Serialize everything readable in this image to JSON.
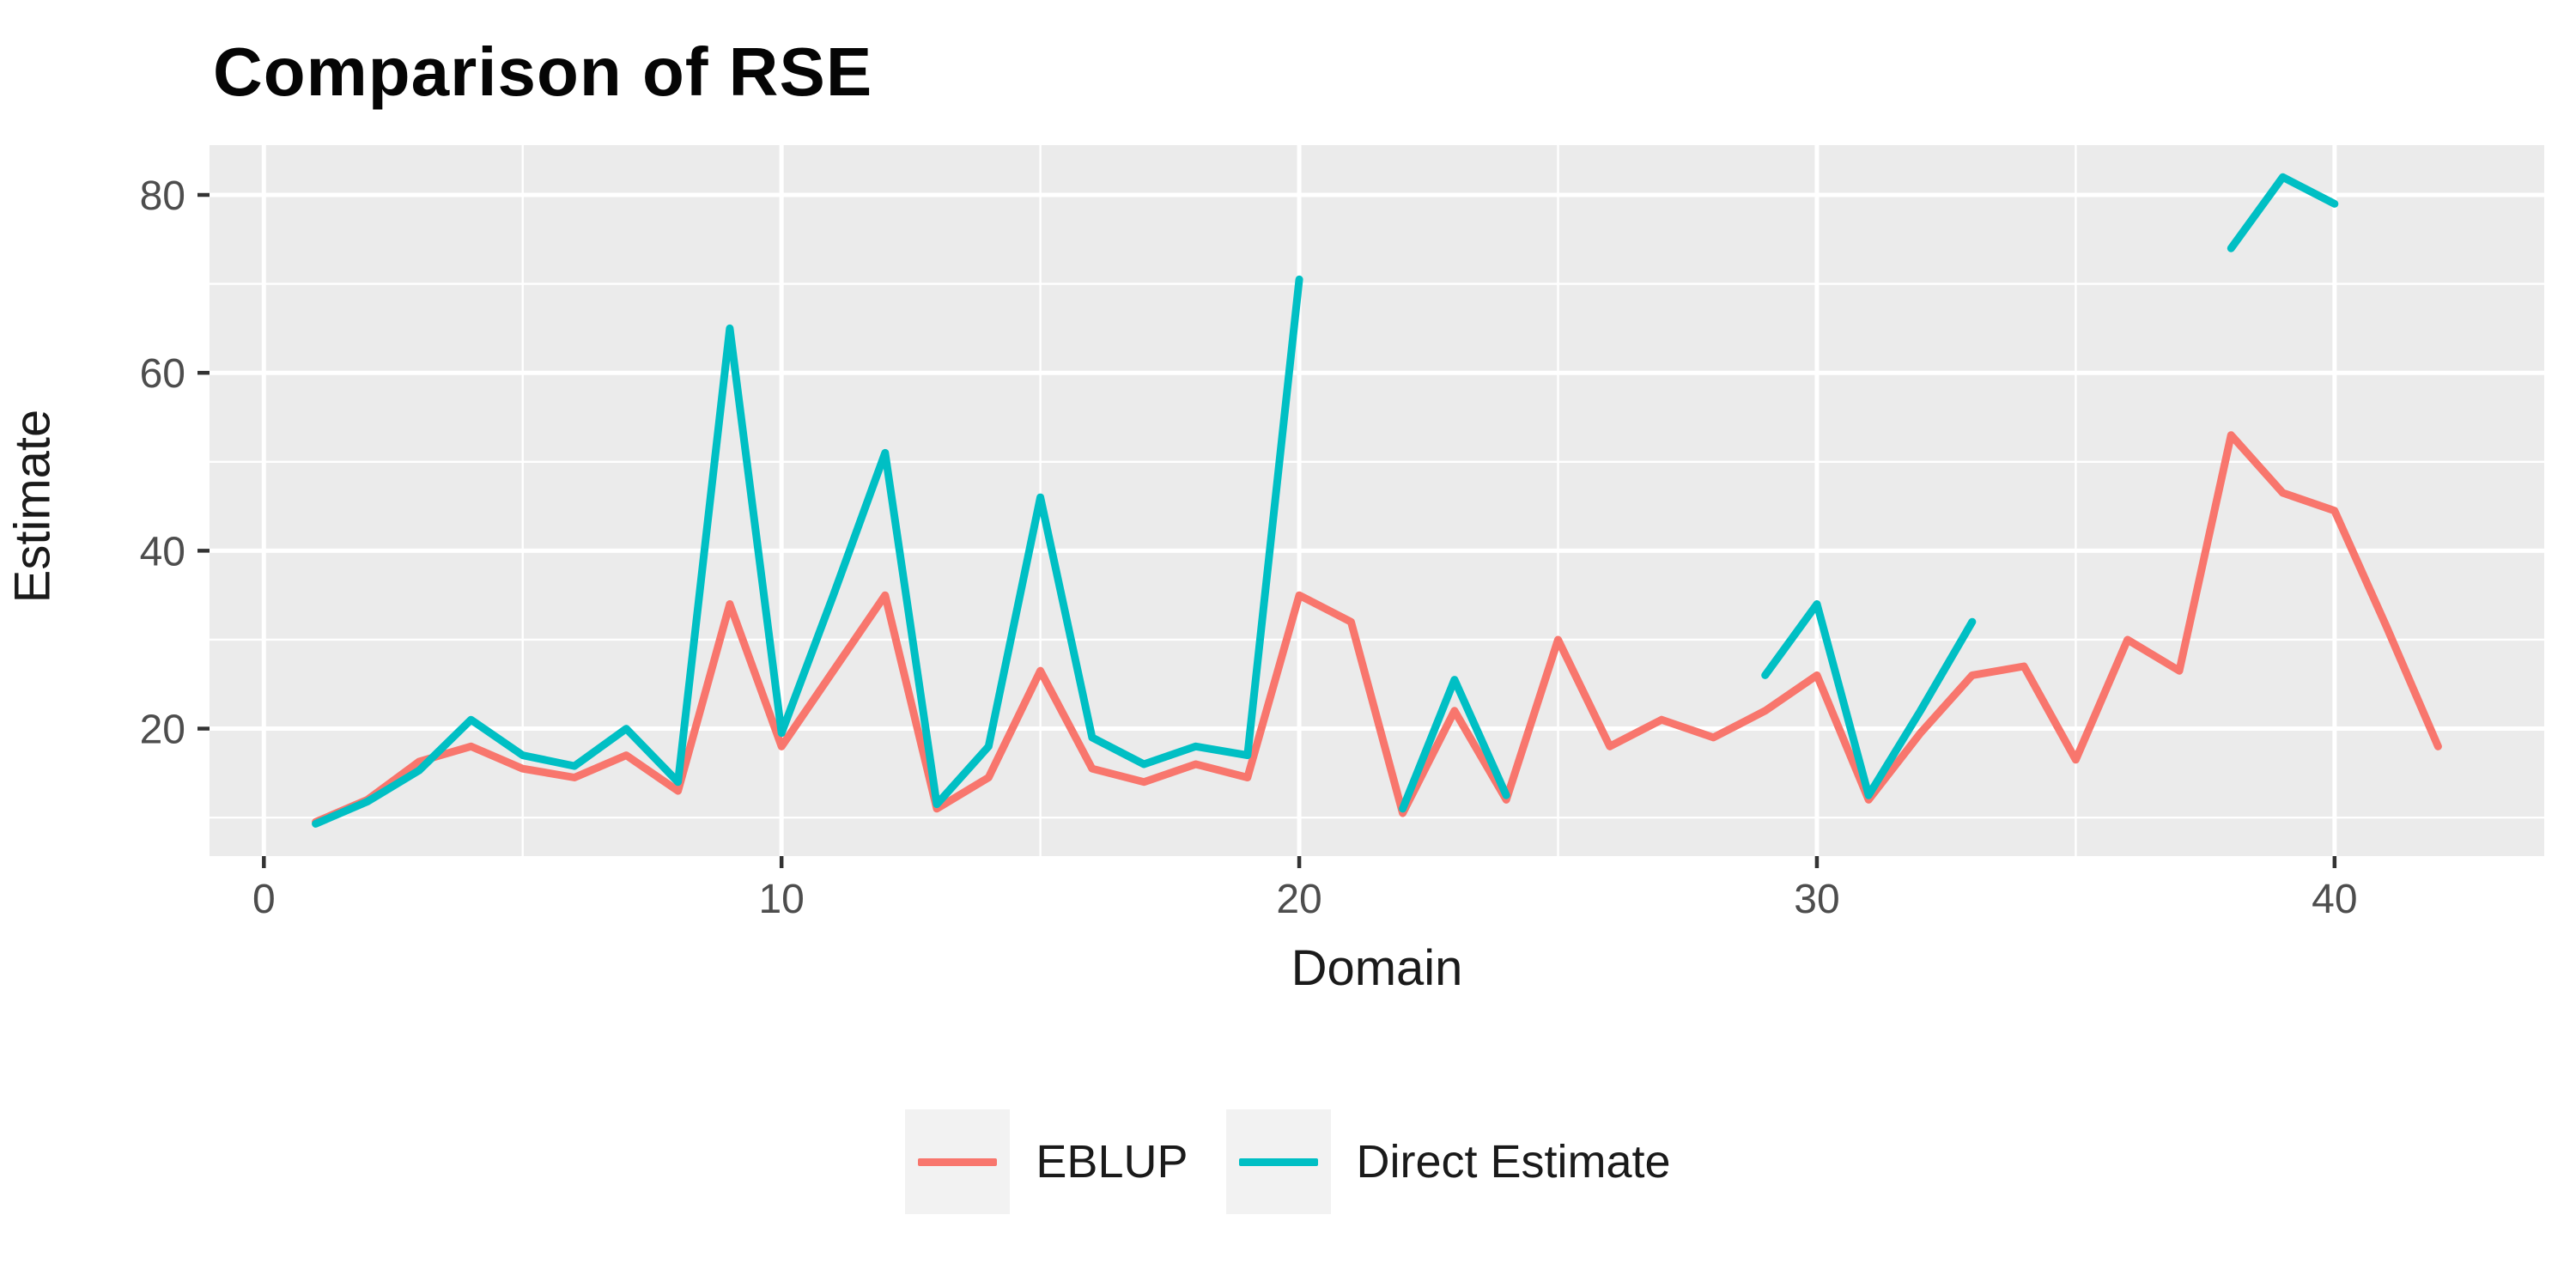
{
  "title": "Comparison of RSE",
  "axes": {
    "x_label": "Domain",
    "y_label": "Estimate"
  },
  "legend": {
    "items": [
      {
        "label": "EBLUP",
        "color": "#F8766D"
      },
      {
        "label": "Direct Estimate",
        "color": "#00BFC4"
      }
    ]
  },
  "colors": {
    "panel_background": "#EBEBEB",
    "gridline": "#FFFFFF",
    "tick_mark": "#333333",
    "tick_label": "#4D4D4D",
    "eblup": "#F8766D",
    "direct": "#00BFC4"
  },
  "chart_data": {
    "type": "line",
    "title": "Comparison of RSE",
    "xlabel": "Domain",
    "ylabel": "Estimate",
    "x_ticks": [
      0,
      10,
      20,
      30,
      40
    ],
    "x_minor_ticks": [
      5,
      15,
      25,
      35
    ],
    "y_ticks": [
      20,
      40,
      60,
      80
    ],
    "y_minor_ticks": [
      10,
      30,
      50,
      70
    ],
    "xlim": [
      -1.05,
      44.05
    ],
    "ylim": [
      5.67,
      85.6
    ],
    "grid": true,
    "legend_position": "bottom",
    "x": [
      1,
      2,
      3,
      4,
      5,
      6,
      7,
      8,
      9,
      10,
      11,
      12,
      13,
      14,
      15,
      16,
      17,
      18,
      19,
      20,
      21,
      22,
      23,
      24,
      25,
      26,
      27,
      28,
      29,
      30,
      31,
      32,
      33,
      34,
      35,
      36,
      37,
      38,
      39,
      40,
      41,
      42
    ],
    "series": [
      {
        "name": "EBLUP",
        "color": "#F8766D",
        "values": [
          9.5,
          12,
          16.3,
          18,
          15.5,
          14.5,
          17,
          13,
          34,
          18,
          26.5,
          35,
          11,
          14.5,
          26.5,
          15.5,
          14,
          16,
          14.5,
          35,
          32,
          10.5,
          22,
          12,
          30,
          18,
          21,
          19,
          22,
          26,
          12,
          19.5,
          26,
          27,
          16.5,
          30,
          26.5,
          53,
          46.5,
          44.5,
          31.5,
          18
        ]
      },
      {
        "name": "Direct Estimate",
        "color": "#00BFC4",
        "values": [
          9.3,
          11.8,
          15.3,
          21,
          17,
          15.8,
          20,
          14,
          65,
          19.5,
          35,
          51,
          11.5,
          18,
          46,
          19,
          16,
          18,
          17,
          70.5,
          null,
          11,
          25.5,
          12.5,
          null,
          null,
          null,
          null,
          26,
          34,
          12.5,
          22,
          32,
          null,
          null,
          null,
          null,
          74,
          82,
          79,
          null,
          null
        ]
      }
    ]
  }
}
